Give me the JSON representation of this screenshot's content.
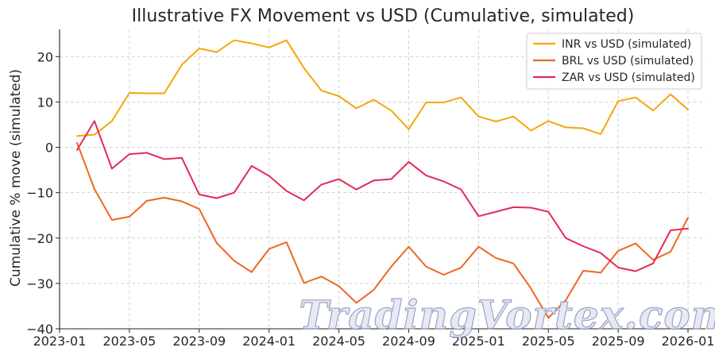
{
  "chart_data": {
    "type": "line",
    "title": "Illustrative FX Movement vs USD (Cumulative, simulated)",
    "xlabel": "",
    "ylabel": "Cumulative % move (simulated)",
    "x_start": "2023-02",
    "x_frequency": "monthly",
    "x_ticks": [
      "2023-01",
      "2023-05",
      "2023-09",
      "2024-01",
      "2024-05",
      "2024-09",
      "2025-01",
      "2025-05",
      "2025-09",
      "2026-01"
    ],
    "y_ticks": [
      20,
      10,
      0,
      -10,
      -20,
      -30,
      -40
    ],
    "ylim": [
      -40,
      26
    ],
    "grid": true,
    "legend_position": "top-right",
    "series": [
      {
        "name": "INR vs USD (simulated)",
        "color": "#f5a60a",
        "values": [
          2.5,
          2.8,
          5.8,
          12.0,
          11.9,
          11.9,
          18.2,
          21.8,
          21.0,
          23.6,
          22.9,
          22.0,
          23.6,
          17.5,
          12.5,
          11.3,
          8.6,
          10.5,
          8.1,
          4.0,
          9.9,
          9.9,
          11.0,
          6.8,
          5.7,
          6.8,
          3.7,
          5.8,
          4.4,
          4.2,
          2.9,
          10.2,
          11.0,
          8.1,
          11.7,
          8.3
        ]
      },
      {
        "name": "BRL vs USD (simulated)",
        "color": "#ec6820",
        "values": [
          1.0,
          -9.2,
          -16.0,
          -15.3,
          -11.8,
          -11.1,
          -11.9,
          -13.6,
          -21.1,
          -25.0,
          -27.5,
          -22.4,
          -20.9,
          -29.9,
          -28.5,
          -30.6,
          -34.3,
          -31.4,
          -26.3,
          -21.9,
          -26.3,
          -28.1,
          -26.5,
          -21.9,
          -24.4,
          -25.6,
          -31.1,
          -37.6,
          -33.7,
          -27.2,
          -27.6,
          -22.8,
          -21.2,
          -24.8,
          -23.0,
          -15.5
        ]
      },
      {
        "name": "ZAR vs USD (simulated)",
        "color": "#e52a55",
        "values": [
          -0.6,
          5.8,
          -4.7,
          -1.5,
          -1.2,
          -2.6,
          -2.3,
          -10.4,
          -11.2,
          -10.0,
          -4.1,
          -6.3,
          -9.6,
          -11.7,
          -8.2,
          -7.0,
          -9.3,
          -7.3,
          -7.0,
          -3.2,
          -6.2,
          -7.5,
          -9.3,
          -15.2,
          -14.2,
          -13.2,
          -13.3,
          -14.2,
          -20.0,
          -21.8,
          -23.3,
          -26.5,
          -27.3,
          -25.6,
          -18.3,
          -17.9
        ]
      }
    ]
  },
  "watermark": {
    "text": "TradingVortex.com"
  }
}
